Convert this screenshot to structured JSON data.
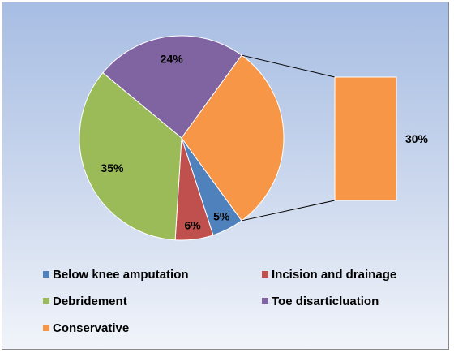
{
  "chart_data": {
    "type": "pie",
    "subtype": "pie-of-pie",
    "title": "",
    "slices": [
      {
        "label": "Below knee amputation",
        "value": 5,
        "display": "5%",
        "color": "#4f81bd"
      },
      {
        "label": "Incision and drainage",
        "value": 6,
        "display": "6%",
        "color": "#c0504d"
      },
      {
        "label": "Debridement",
        "value": 35,
        "display": "35%",
        "color": "#9bbb59"
      },
      {
        "label": "Toe disarticluation",
        "value": 24,
        "display": "24%",
        "color": "#8064a2"
      },
      {
        "label": "Conservative",
        "value": 30,
        "display": "30%",
        "color": "#f79646"
      }
    ],
    "secondary": {
      "source_slice": "Conservative",
      "value": 30,
      "display": "30%",
      "shape": "stacked-bar"
    },
    "legend_placement": "bottom",
    "background_colors": [
      "#a7bde3",
      "#f1f4fa"
    ]
  }
}
